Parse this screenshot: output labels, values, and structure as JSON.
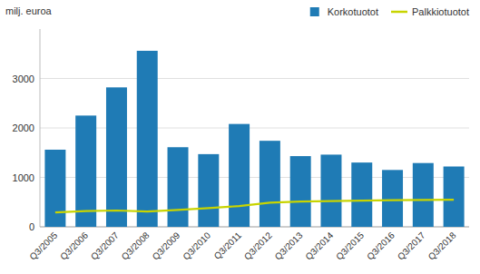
{
  "chart_data": {
    "type": "bar",
    "ylabel": "milj. euroa",
    "categories": [
      "Q3/2005",
      "Q3/2006",
      "Q3/2007",
      "Q3/2008",
      "Q3/2009",
      "Q3/2010",
      "Q3/2011",
      "Q3/2012",
      "Q3/2013",
      "Q3/2014",
      "Q3/2015",
      "Q3/2016",
      "Q3/2017",
      "Q3/2018"
    ],
    "series": [
      {
        "name": "Korkotuotot",
        "type": "bar",
        "color": "#1f7bb5",
        "values": [
          1560,
          2250,
          2820,
          3560,
          1610,
          1470,
          2080,
          1740,
          1430,
          1460,
          1300,
          1150,
          1290,
          1220
        ]
      },
      {
        "name": "Palkkiotuotot",
        "type": "line",
        "color": "#c8d400",
        "values": [
          290,
          320,
          330,
          310,
          340,
          380,
          420,
          490,
          510,
          520,
          530,
          540,
          545,
          550
        ]
      }
    ],
    "ylim": [
      0,
      4000
    ],
    "yticks": [
      0,
      1000,
      2000,
      3000
    ],
    "grid": true,
    "legend": "top-right"
  }
}
